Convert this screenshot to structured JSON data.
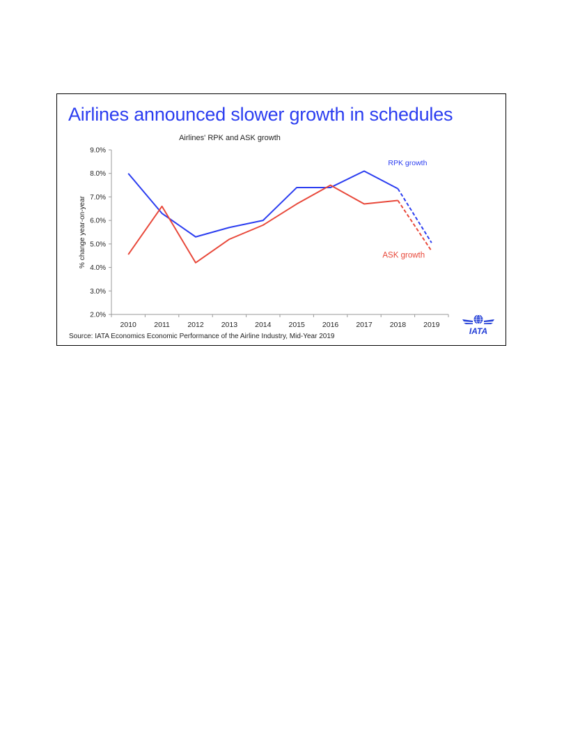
{
  "slide": {
    "headline": "Airlines announced slower growth in schedules",
    "source": "Source: IATA Economics Economic Performance of the Airline Industry, Mid-Year 2019",
    "logo_text": "IATA",
    "logo_color": "#1f3bd6"
  },
  "chart_data": {
    "type": "line",
    "title": "Airlines' RPK and ASK growth",
    "xlabel": "",
    "ylabel": "% change year-on-year",
    "x": [
      "2010",
      "2011",
      "2012",
      "2013",
      "2014",
      "2015",
      "2016",
      "2017",
      "2018",
      "2019"
    ],
    "ylim": [
      2.0,
      9.0
    ],
    "yticks": [
      "2.0%",
      "3.0%",
      "4.0%",
      "5.0%",
      "6.0%",
      "7.0%",
      "8.0%",
      "9.0%"
    ],
    "grid": false,
    "series": [
      {
        "name": "RPK growth",
        "color": "#2b3df0",
        "values": [
          8.0,
          6.3,
          5.3,
          5.7,
          6.0,
          7.4,
          7.4,
          8.1,
          7.35,
          5.05
        ],
        "dashed_from": "2018"
      },
      {
        "name": "ASK growth",
        "color": "#e8483a",
        "values": [
          4.55,
          6.6,
          4.2,
          5.2,
          5.8,
          6.7,
          7.5,
          6.7,
          6.85,
          4.7
        ],
        "dashed_from": "2018"
      }
    ]
  }
}
